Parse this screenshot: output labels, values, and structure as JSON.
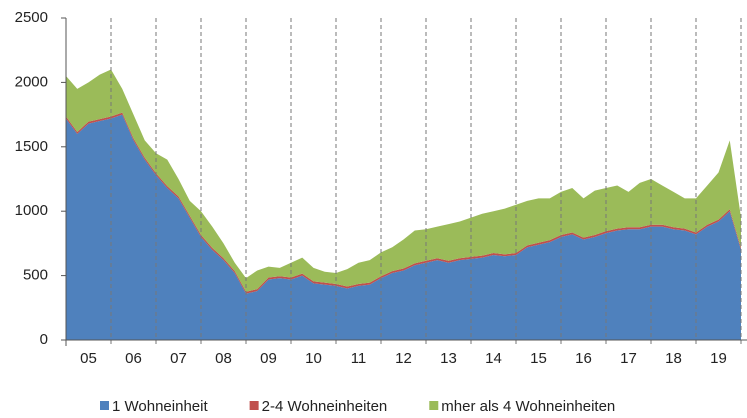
{
  "chart_data": {
    "type": "stacked_area",
    "categories": [
      null,
      null,
      "05",
      null,
      null,
      null,
      "06",
      null,
      null,
      null,
      "07",
      null,
      null,
      null,
      "08",
      null,
      null,
      null,
      "09",
      null,
      null,
      null,
      "10",
      null,
      null,
      null,
      "11",
      null,
      null,
      null,
      "12",
      null,
      null,
      null,
      "13",
      null,
      null,
      null,
      "14",
      null,
      null,
      null,
      "15",
      null,
      null,
      null,
      "16",
      null,
      null,
      null,
      "17",
      null,
      null,
      null,
      "18",
      null,
      null,
      null,
      "19",
      null,
      null
    ],
    "series": [
      {
        "name": "1 Wohneinheit",
        "color": "#4f81bd",
        "values": [
          1720,
          1600,
          1680,
          1700,
          1720,
          1750,
          1550,
          1400,
          1280,
          1180,
          1100,
          950,
          800,
          700,
          620,
          520,
          360,
          380,
          470,
          480,
          470,
          500,
          440,
          430,
          420,
          400,
          420,
          430,
          480,
          520,
          540,
          580,
          600,
          620,
          600,
          620,
          630,
          640,
          660,
          650,
          660,
          720,
          740,
          760,
          800,
          820,
          780,
          800,
          830,
          850,
          860,
          860,
          880,
          880,
          860,
          850,
          820,
          880,
          920,
          1000,
          700
        ]
      },
      {
        "name": "2-4 Wohneinheiten",
        "color": "#c0504d",
        "values": [
          15,
          15,
          15,
          15,
          15,
          15,
          15,
          15,
          15,
          15,
          15,
          15,
          15,
          15,
          15,
          15,
          15,
          15,
          15,
          15,
          15,
          15,
          15,
          15,
          15,
          15,
          15,
          15,
          15,
          15,
          15,
          15,
          15,
          15,
          15,
          15,
          15,
          15,
          15,
          15,
          15,
          15,
          15,
          15,
          15,
          15,
          15,
          15,
          15,
          15,
          15,
          15,
          15,
          15,
          15,
          15,
          15,
          15,
          15,
          15,
          15
        ]
      },
      {
        "name": "mher als 4 Wohneinheiten",
        "color": "#9bbb59",
        "values": [
          315,
          335,
          305,
          345,
          365,
          185,
          185,
          135,
          155,
          205,
          135,
          115,
          185,
          165,
          115,
          65,
          105,
          145,
          85,
          65,
          115,
          125,
          105,
          85,
          85,
          135,
          165,
          175,
          185,
          185,
          225,
          255,
          245,
          245,
          285,
          285,
          305,
          325,
          325,
          355,
          375,
          345,
          345,
          325,
          335,
          345,
          305,
          345,
          335,
          335,
          275,
          345,
          355,
          305,
          275,
          235,
          265,
          305,
          365,
          535,
          235
        ]
      }
    ],
    "ylim": [
      0,
      2500
    ],
    "yticks": [
      0,
      500,
      1000,
      1500,
      2000,
      2500
    ],
    "legend": "bottom"
  }
}
